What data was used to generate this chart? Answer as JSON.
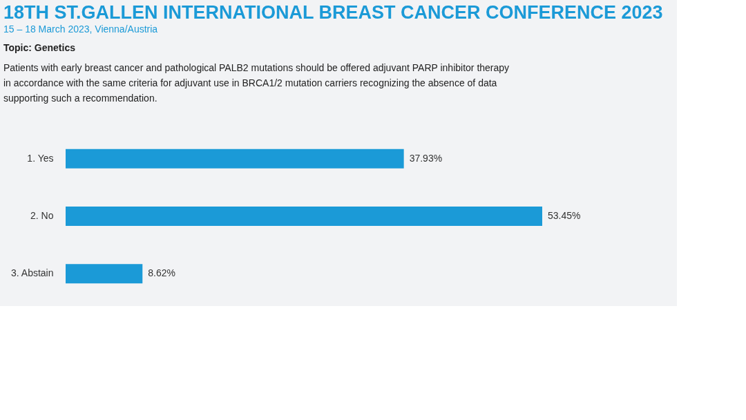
{
  "chart_data": {
    "type": "bar",
    "orientation": "horizontal",
    "title": "18TH ST.GALLEN INTERNATIONAL BREAST CANCER CONFERENCE 2023",
    "subtitle": "15 – 18 March 2023, Vienna/Austria",
    "annotations": [
      "Topic: Genetics",
      "Patients with early breast cancer and pathological PALB2 mutations should be offered adjuvant PARP inhibitor therapy in accordance with the same criteria for adjuvant use in BRCA1/2 mutation carriers recognizing the absence of data supporting such a recommendation."
    ],
    "categories": [
      "1. Yes",
      "2. No",
      "3. Abstain"
    ],
    "values": [
      37.93,
      53.45,
      8.62
    ],
    "value_labels": [
      "37.93%",
      "53.45%",
      "8.62%"
    ],
    "color": "#1b9ad7"
  }
}
